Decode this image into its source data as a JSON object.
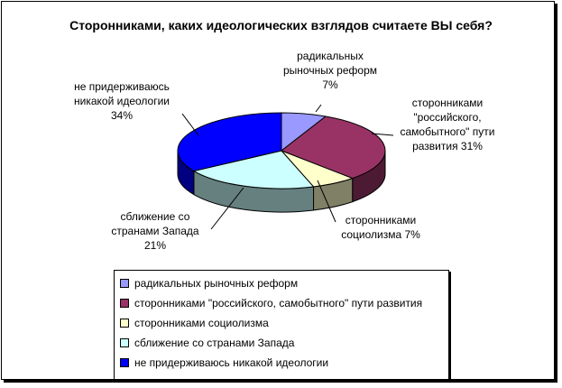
{
  "chart_data": {
    "type": "pie",
    "title": "Сторонниками, каких идеологических взглядов считаете ВЫ себя?",
    "slices": [
      {
        "name": "радикальных рыночных реформ",
        "value": 7,
        "color": "#9999ff",
        "label": [
          "радикальных",
          "рыночных реформ",
          "7%"
        ]
      },
      {
        "name": "сторонниками \"российского, самобытного\" пути развития",
        "value": 31,
        "color": "#993366",
        "label": [
          "сторонниками",
          "\"российского,",
          "самобытного\" пути",
          "развития 31%"
        ]
      },
      {
        "name": "сторонниками социолизма",
        "value": 7,
        "color": "#ffffcc",
        "label": [
          "сторонниками",
          "социолизма 7%"
        ]
      },
      {
        "name": "сближение со странами Запада",
        "value": 21,
        "color": "#ccffff",
        "label": [
          "сближение со",
          "странами Запада",
          "21%"
        ]
      },
      {
        "name": "не придерживаюсь никакой идеологии",
        "value": 34,
        "color": "#0000ff",
        "label": [
          "не придерживаюсь",
          "никакой идеологии",
          "34%"
        ]
      }
    ],
    "legend_position": "bottom",
    "style": "3d"
  }
}
